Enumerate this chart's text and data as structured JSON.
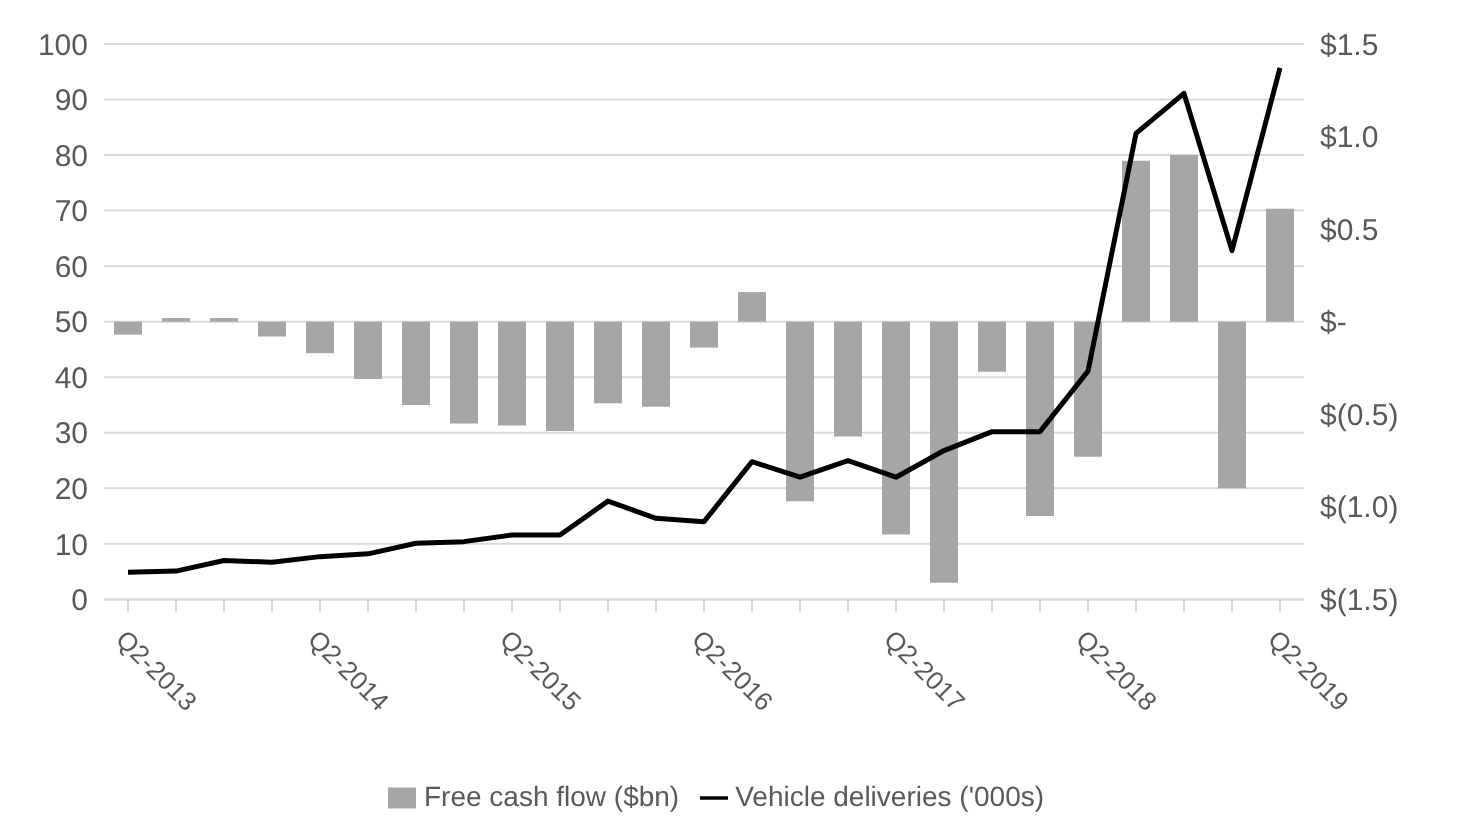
{
  "chart_data": {
    "type": "bar",
    "categories": [
      "Q2-2013",
      null,
      null,
      null,
      "Q2-2014",
      null,
      null,
      null,
      "Q2-2015",
      null,
      null,
      null,
      "Q2-2016",
      null,
      null,
      null,
      "Q2-2017",
      null,
      null,
      null,
      "Q2-2018",
      null,
      null,
      null,
      "Q2-2019"
    ],
    "series": [
      {
        "name": "Free cash flow ($bn)",
        "axis": "y2",
        "color": "#a6a6a6",
        "values": [
          -0.07,
          0.02,
          0.02,
          -0.08,
          -0.17,
          -0.31,
          -0.45,
          -0.55,
          -0.56,
          -0.59,
          -0.44,
          -0.46,
          -0.14,
          0.16,
          -0.97,
          -0.62,
          -1.15,
          -1.41,
          -0.27,
          -1.05,
          -0.73,
          0.87,
          0.9,
          -0.9,
          0.61
        ]
      },
      {
        "name": "Vehicle deliveries ('000s)",
        "type": "line",
        "axis": "y",
        "color": "#000000",
        "values": [
          4.9,
          5.1,
          7.0,
          6.7,
          7.7,
          8.2,
          10.1,
          10.4,
          11.6,
          11.6,
          17.7,
          14.6,
          14.0,
          24.8,
          22.0,
          25.0,
          22.0,
          26.8,
          30.2,
          30.2,
          41.1,
          83.9,
          91.1,
          62.8,
          95.7
        ]
      }
    ],
    "ylim": [
      0,
      100
    ],
    "yticks": [
      0,
      10,
      20,
      30,
      40,
      50,
      60,
      70,
      80,
      90,
      100
    ],
    "y2lim": [
      -1.5,
      1.5
    ],
    "y2ticks": [
      {
        "value": -1.5,
        "label": "$(1.5)"
      },
      {
        "value": -1.0,
        "label": "$(1.0)"
      },
      {
        "value": -0.5,
        "label": "$(0.5)"
      },
      {
        "value": 0,
        "label": "$-"
      },
      {
        "value": 0.5,
        "label": "$0.5"
      },
      {
        "value": 1.0,
        "label": "$1.0"
      },
      {
        "value": 1.5,
        "label": "$1.5"
      }
    ],
    "grid": "y",
    "legend": "bottom",
    "marker": "none",
    "line_style": "solid"
  }
}
